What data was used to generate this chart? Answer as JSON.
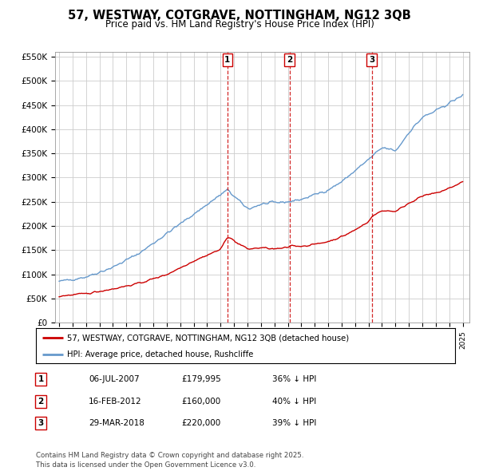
{
  "title": "57, WESTWAY, COTGRAVE, NOTTINGHAM, NG12 3QB",
  "subtitle": "Price paid vs. HM Land Registry's House Price Index (HPI)",
  "red_line_label": "57, WESTWAY, COTGRAVE, NOTTINGHAM, NG12 3QB (detached house)",
  "blue_line_label": "HPI: Average price, detached house, Rushcliffe",
  "footer": "Contains HM Land Registry data © Crown copyright and database right 2025.\nThis data is licensed under the Open Government Licence v3.0.",
  "sales": [
    {
      "num": 1,
      "date": "06-JUL-2007",
      "price": 179995,
      "pct": "36%",
      "x_year": 2007.51
    },
    {
      "num": 2,
      "date": "16-FEB-2012",
      "price": 160000,
      "pct": "40%",
      "x_year": 2012.12
    },
    {
      "num": 3,
      "date": "29-MAR-2018",
      "price": 220000,
      "pct": "39%",
      "x_year": 2018.24
    }
  ],
  "ylim": [
    0,
    560000
  ],
  "xlim_start": 1994.7,
  "xlim_end": 2025.5,
  "yticks": [
    0,
    50000,
    100000,
    150000,
    200000,
    250000,
    300000,
    350000,
    400000,
    450000,
    500000,
    550000
  ],
  "ytick_labels": [
    "£0",
    "£50K",
    "£100K",
    "£150K",
    "£200K",
    "£250K",
    "£300K",
    "£350K",
    "£400K",
    "£450K",
    "£500K",
    "£550K"
  ],
  "xticks": [
    1995,
    1996,
    1997,
    1998,
    1999,
    2000,
    2001,
    2002,
    2003,
    2004,
    2005,
    2006,
    2007,
    2008,
    2009,
    2010,
    2011,
    2012,
    2013,
    2014,
    2015,
    2016,
    2017,
    2018,
    2019,
    2020,
    2021,
    2022,
    2023,
    2024,
    2025
  ],
  "red_color": "#cc0000",
  "blue_color": "#6699cc",
  "vline_color": "#cc0000",
  "bg_color": "#ffffff",
  "grid_color": "#cccccc",
  "blue_anchors_x": [
    1995,
    1997,
    1999,
    2001,
    2003,
    2005,
    2007,
    2007.5,
    2008,
    2009,
    2010,
    2011,
    2012,
    2013,
    2014,
    2015,
    2016,
    2017,
    2018,
    2019,
    2020,
    2021,
    2022,
    2023,
    2024,
    2025
  ],
  "blue_anchors_y": [
    85000,
    95000,
    115000,
    145000,
    185000,
    225000,
    265000,
    275000,
    260000,
    235000,
    245000,
    248000,
    250000,
    255000,
    265000,
    275000,
    292000,
    315000,
    338000,
    362000,
    355000,
    395000,
    425000,
    438000,
    455000,
    470000
  ],
  "red_anchors_x": [
    1995,
    1997,
    1999,
    2001,
    2003,
    2005,
    2007,
    2007.51,
    2008,
    2009,
    2010,
    2011,
    2012,
    2012.12,
    2013,
    2014,
    2015,
    2016,
    2017,
    2018,
    2018.24,
    2019,
    2020,
    2021,
    2022,
    2023,
    2024,
    2025
  ],
  "red_anchors_y": [
    55000,
    60000,
    70000,
    82000,
    100000,
    128000,
    152000,
    179995,
    168000,
    152000,
    155000,
    152000,
    155000,
    160000,
    158000,
    162000,
    168000,
    178000,
    192000,
    210000,
    220000,
    232000,
    230000,
    248000,
    262000,
    268000,
    278000,
    292000
  ]
}
